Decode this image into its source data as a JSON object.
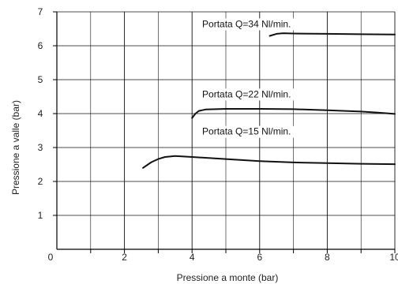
{
  "chart_data": {
    "type": "line",
    "xlabel": "Pressione a monte (bar)",
    "ylabel": "Pressione a valle (bar)",
    "xlim": [
      0,
      10
    ],
    "ylim": [
      0,
      7
    ],
    "xticks": [
      0,
      2,
      4,
      6,
      8,
      10
    ],
    "xtick_labels": [
      "0",
      "2",
      "4",
      "6",
      "8",
      "10"
    ],
    "yticks": [
      1,
      2,
      3,
      4,
      5,
      6,
      7
    ],
    "ytick_labels": [
      "1",
      "2",
      "3",
      "4",
      "5",
      "6",
      "7"
    ],
    "grid": true,
    "series": [
      {
        "name": "Portata Q=34 Nl/min.",
        "x": [
          6.3,
          6.5,
          6.7,
          7.0,
          8.0,
          9.0,
          10.0
        ],
        "y": [
          6.29,
          6.35,
          6.37,
          6.36,
          6.35,
          6.34,
          6.33
        ]
      },
      {
        "name": "Portata Q=22 Nl/min.",
        "x": [
          4.0,
          4.1,
          4.2,
          4.4,
          5.0,
          6.0,
          7.0,
          8.0,
          9.0,
          9.5,
          10.0
        ],
        "y": [
          3.87,
          4.0,
          4.08,
          4.12,
          4.14,
          4.14,
          4.13,
          4.1,
          4.06,
          4.03,
          3.99
        ]
      },
      {
        "name": "Portata Q=15 Nl/min.",
        "x": [
          2.55,
          2.8,
          3.0,
          3.2,
          3.5,
          4.0,
          5.0,
          6.0,
          7.0,
          8.0,
          9.0,
          10.0
        ],
        "y": [
          2.4,
          2.57,
          2.66,
          2.72,
          2.75,
          2.72,
          2.66,
          2.6,
          2.56,
          2.54,
          2.52,
          2.51
        ]
      }
    ]
  }
}
